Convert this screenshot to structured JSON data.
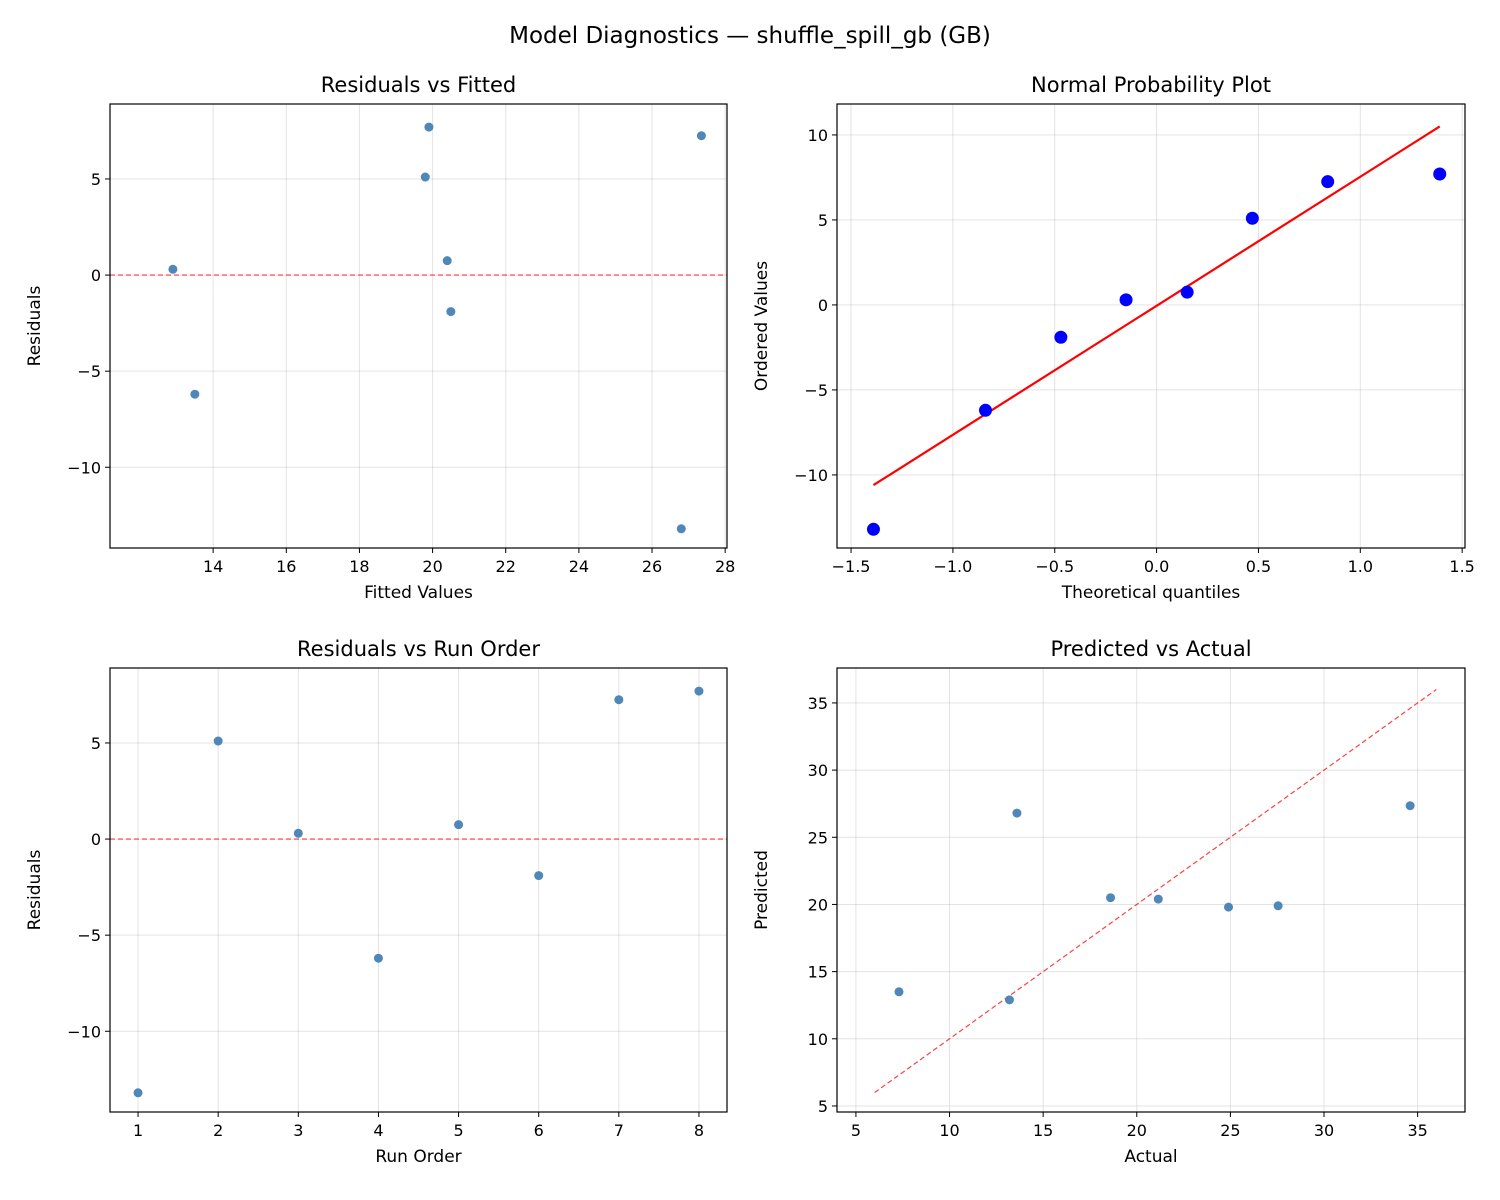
{
  "title": "Model Diagnostics — shuffle_spill_gb (GB)",
  "chart_data": [
    {
      "id": "resid_fitted",
      "type": "scatter",
      "title": "Residuals vs Fitted",
      "xlabel": "Fitted Values",
      "ylabel": "Residuals",
      "xlim": [
        11.18,
        28.05
      ],
      "ylim": [
        -14.2,
        8.9
      ],
      "xticks": [
        14,
        16,
        18,
        20,
        22,
        24,
        26,
        28
      ],
      "yticks": [
        -10,
        -5,
        0,
        5
      ],
      "grid": true,
      "point_color": "#4682b4",
      "ref_line": {
        "type": "hline",
        "y": 0,
        "color": "#ff0000",
        "style": "dashed"
      },
      "x": [
        26.8,
        19.8,
        12.9,
        13.5,
        20.4,
        20.5,
        27.35,
        19.9
      ],
      "y": [
        -13.2,
        5.1,
        0.3,
        -6.2,
        0.75,
        -1.9,
        7.25,
        7.7
      ]
    },
    {
      "id": "qq",
      "type": "scatter",
      "title": "Normal Probability Plot",
      "xlabel": "Theoretical quantiles",
      "ylabel": "Ordered Values",
      "xlim": [
        -1.569,
        1.514
      ],
      "ylim": [
        -14.3,
        11.82
      ],
      "xticks": [
        -1.5,
        -1.0,
        -0.5,
        0.0,
        0.5,
        1.0,
        1.5
      ],
      "yticks": [
        -10,
        -5,
        0,
        5,
        10
      ],
      "grid": true,
      "point_color": "#0000ff",
      "ref_line": {
        "type": "segment",
        "x": [
          -1.39,
          1.39
        ],
        "y": [
          -10.6,
          10.5
        ],
        "color": "#ff0000",
        "style": "solid"
      },
      "x": [
        -1.39,
        -0.84,
        -0.47,
        -0.15,
        0.15,
        0.47,
        0.84,
        1.39
      ],
      "y": [
        -13.2,
        -6.2,
        -1.9,
        0.3,
        0.75,
        5.1,
        7.25,
        7.7
      ]
    },
    {
      "id": "resid_order",
      "type": "scatter",
      "title": "Residuals vs Run Order",
      "xlabel": "Run Order",
      "ylabel": "Residuals",
      "xlim": [
        0.65,
        8.35
      ],
      "ylim": [
        -14.2,
        8.9
      ],
      "xticks": [
        1,
        2,
        3,
        4,
        5,
        6,
        7,
        8
      ],
      "yticks": [
        -10,
        -5,
        0,
        5
      ],
      "grid": true,
      "point_color": "#4682b4",
      "ref_line": {
        "type": "hline",
        "y": 0,
        "color": "#ff0000",
        "style": "dashed"
      },
      "x": [
        1,
        2,
        3,
        4,
        5,
        6,
        7,
        8
      ],
      "y": [
        -13.2,
        5.1,
        0.3,
        -6.2,
        0.75,
        -1.9,
        7.25,
        7.7
      ]
    },
    {
      "id": "pred_actual",
      "type": "scatter",
      "title": "Predicted vs Actual",
      "xlabel": "Actual",
      "ylabel": "Predicted",
      "xlim": [
        3.99,
        37.53
      ],
      "ylim": [
        4.55,
        37.6
      ],
      "xticks": [
        5,
        10,
        15,
        20,
        25,
        30,
        35
      ],
      "yticks": [
        5,
        10,
        15,
        20,
        25,
        30,
        35
      ],
      "grid": true,
      "point_color": "#4682b4",
      "ref_line": {
        "type": "segment",
        "x": [
          6,
          36
        ],
        "y": [
          6,
          36
        ],
        "color": "#ff0000",
        "style": "dashed"
      },
      "x": [
        13.6,
        24.9,
        13.2,
        7.3,
        21.15,
        18.6,
        34.6,
        27.55
      ],
      "y": [
        26.8,
        19.8,
        12.9,
        13.5,
        20.4,
        20.5,
        27.35,
        19.9
      ]
    }
  ]
}
